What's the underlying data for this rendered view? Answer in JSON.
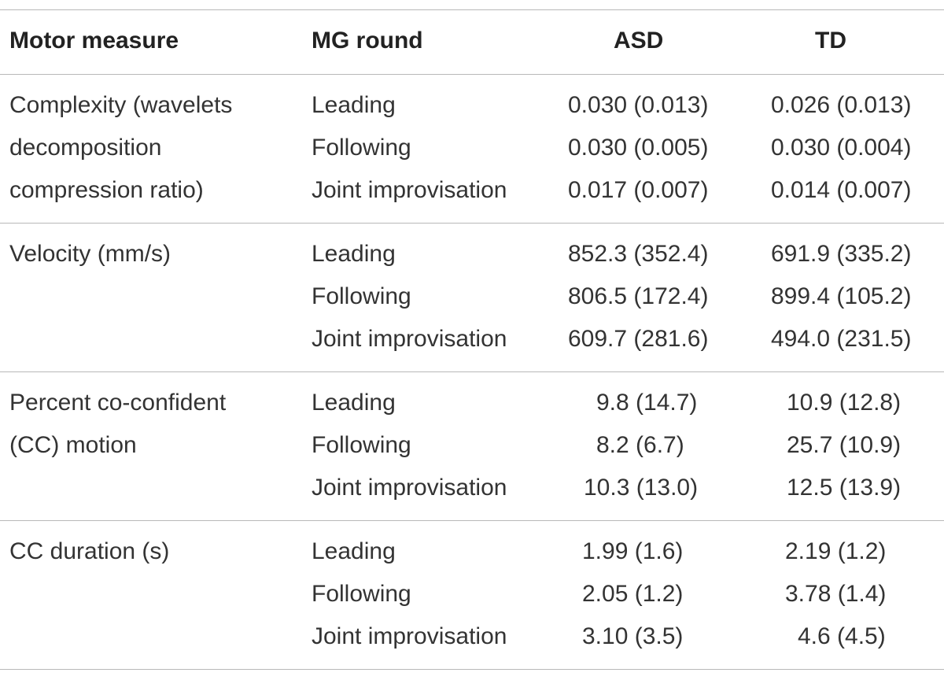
{
  "table": {
    "headers": {
      "measure": "Motor measure",
      "round": "MG round",
      "asd": "ASD",
      "td": "TD"
    },
    "groups": [
      {
        "measure_lines": [
          "Complexity (wavelets",
          "decomposition",
          "compression ratio)"
        ],
        "rows": [
          {
            "round": "Leading",
            "asd": "0.030 (0.013)",
            "td": "0.026 (0.013)"
          },
          {
            "round": "Following",
            "asd": "0.030 (0.005)",
            "td": "0.030 (0.004)"
          },
          {
            "round": "Joint improvisation",
            "asd": "0.017 (0.007)",
            "td": "0.014 (0.007)"
          }
        ]
      },
      {
        "measure_lines": [
          "Velocity (mm/s)"
        ],
        "rows": [
          {
            "round": "Leading",
            "asd": "852.3 (352.4)",
            "td": "691.9 (335.2)"
          },
          {
            "round": "Following",
            "asd": "806.5 (172.4)",
            "td": "899.4 (105.2)"
          },
          {
            "round": "Joint improvisation",
            "asd": "609.7 (281.6)",
            "td": "494.0 (231.5)"
          }
        ]
      },
      {
        "measure_lines": [
          "Percent co-confident",
          "(CC) motion"
        ],
        "rows": [
          {
            "round": "Leading",
            "asd": "9.8 (14.7)",
            "td": "10.9 (12.8)"
          },
          {
            "round": "Following",
            "asd": "8.2 (6.7)",
            "td": "25.7 (10.9)"
          },
          {
            "round": "Joint improvisation",
            "asd": "10.3 (13.0)",
            "td": "12.5 (13.9)"
          }
        ]
      },
      {
        "measure_lines": [
          "CC duration (s)"
        ],
        "rows": [
          {
            "round": "Leading",
            "asd": "1.99 (1.6)",
            "td": "2.19 (1.2)"
          },
          {
            "round": "Following",
            "asd": "2.05 (1.2)",
            "td": "3.78 (1.4)"
          },
          {
            "round": "Joint improvisation",
            "asd": "3.10 (3.5)",
            "td": "4.6 (4.5)"
          }
        ]
      }
    ]
  }
}
